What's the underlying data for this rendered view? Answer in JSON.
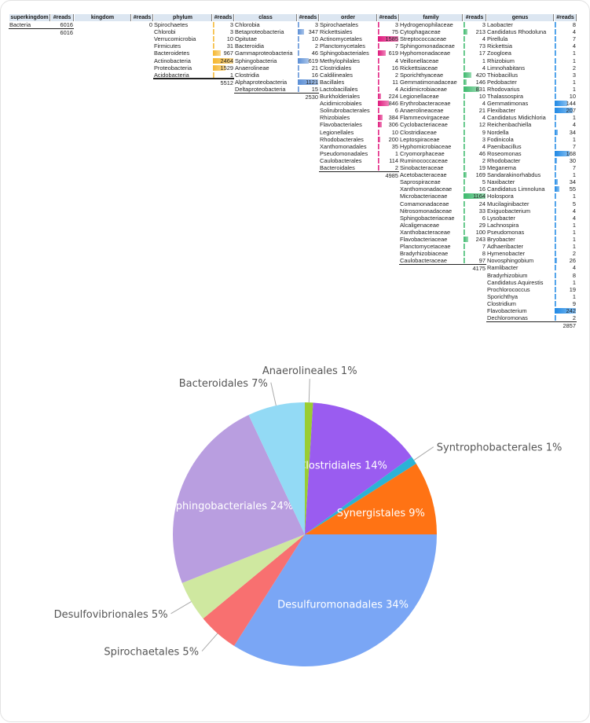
{
  "table": {
    "reads_header": "#reads",
    "levels": [
      {
        "header": "superkingdom",
        "items": [
          {
            "name": "Bacteria",
            "reads": 6016
          }
        ],
        "total": 6016,
        "bar_color": null
      },
      {
        "header": "kingdom",
        "items": [
          {
            "name": "",
            "reads": 0
          }
        ],
        "total": null,
        "bar_color": null
      },
      {
        "header": "phylum",
        "bar_color": "#f5b730",
        "items": [
          {
            "name": "Spirochaetes",
            "reads": 3
          },
          {
            "name": "Chlorobi",
            "reads": 3
          },
          {
            "name": "Verrucomicrobia",
            "reads": 10
          },
          {
            "name": "Firmicutes",
            "reads": 31
          },
          {
            "name": "Bacteroidetes",
            "reads": 967
          },
          {
            "name": "Actinobacteria",
            "reads": 2464
          },
          {
            "name": "Proteobacteria",
            "reads": 1529
          },
          {
            "name": "Acidobacteria",
            "reads": 1
          }
        ],
        "total": 5512
      },
      {
        "header": "class",
        "bar_color": "#5b8fd6",
        "items": [
          {
            "name": "Chlorobia",
            "reads": 3
          },
          {
            "name": "Betaproteobacteria",
            "reads": 347
          },
          {
            "name": "Opitutae",
            "reads": 10
          },
          {
            "name": "Bacteroidia",
            "reads": 2
          },
          {
            "name": "Gammaproteobacteria",
            "reads": 46
          },
          {
            "name": "Sphingobacteria",
            "reads": 619
          },
          {
            "name": "Anaerolineae",
            "reads": 21
          },
          {
            "name": "Clostridia",
            "reads": 16
          },
          {
            "name": "Alphaproteobacteria",
            "reads": 1121
          },
          {
            "name": "Deltaproteobacteria",
            "reads": 15
          }
        ],
        "total": 2530
      },
      {
        "header": "order",
        "bar_color": "#e0197d",
        "items": [
          {
            "name": "Spirochaetales",
            "reads": 3
          },
          {
            "name": "Rickettsiales",
            "reads": 75
          },
          {
            "name": "Actinomycetales",
            "reads": 1585
          },
          {
            "name": "Planctomycetales",
            "reads": 7
          },
          {
            "name": "Sphingobacteriales",
            "reads": 619
          },
          {
            "name": "Methylophilales",
            "reads": 4
          },
          {
            "name": "Clostridiales",
            "reads": 16
          },
          {
            "name": "Caldilineales",
            "reads": 2
          },
          {
            "name": "Bacillales",
            "reads": 11
          },
          {
            "name": "Lactobacillales",
            "reads": 4
          },
          {
            "name": "Burkholderiales",
            "reads": 224
          },
          {
            "name": "Acidimicrobiales",
            "reads": 846
          },
          {
            "name": "Solirubrobacterales",
            "reads": 6
          },
          {
            "name": "Rhizobiales",
            "reads": 384
          },
          {
            "name": "Flavobacteriales",
            "reads": 306
          },
          {
            "name": "Legionellales",
            "reads": 10
          },
          {
            "name": "Rhodobacterales",
            "reads": 200
          },
          {
            "name": "Xanthomonadales",
            "reads": 35
          },
          {
            "name": "Pseudomonadales",
            "reads": 1
          },
          {
            "name": "Caulobacterales",
            "reads": 114
          },
          {
            "name": "Bacteroidales",
            "reads": 2
          }
        ],
        "total": 4985
      },
      {
        "header": "family",
        "bar_color": "#3cb96c",
        "items": [
          {
            "name": "Hydrogenophilaceae",
            "reads": 3
          },
          {
            "name": "Cytophagaceae",
            "reads": 213
          },
          {
            "name": "Streptococcaceae",
            "reads": 4
          },
          {
            "name": "Sphingomonadaceae",
            "reads": 73
          },
          {
            "name": "Hyphomonadaceae",
            "reads": 17
          },
          {
            "name": "Veillonellaceae",
            "reads": 1
          },
          {
            "name": "Rickettsiaceae",
            "reads": 4
          },
          {
            "name": "Sporichthyaceae",
            "reads": 420
          },
          {
            "name": "Gemmatimonadaceae",
            "reads": 146
          },
          {
            "name": "Acidimicrobiaceae",
            "reads": 831
          },
          {
            "name": "Legionellaceae",
            "reads": 10
          },
          {
            "name": "Erythrobacteraceae",
            "reads": 4
          },
          {
            "name": "Anaerolineaceae",
            "reads": 21
          },
          {
            "name": "Flammeovirgaceae",
            "reads": 4
          },
          {
            "name": "Cyclobacteriaceae",
            "reads": 12
          },
          {
            "name": "Clostridiaceae",
            "reads": 9
          },
          {
            "name": "Leptospiraceae",
            "reads": 3
          },
          {
            "name": "Hyphomicrobiaceae",
            "reads": 4
          },
          {
            "name": "Cryomorphaceae",
            "reads": 46
          },
          {
            "name": "Ruminococcaceae",
            "reads": 2
          },
          {
            "name": "Sinobacteraceae",
            "reads": 19
          },
          {
            "name": "Acetobacteraceae",
            "reads": 169
          },
          {
            "name": "Saprospiraceae",
            "reads": 5
          },
          {
            "name": "Xanthomonadaceae",
            "reads": 16
          },
          {
            "name": "Microbacteriaceae",
            "reads": 1164
          },
          {
            "name": "Comamonadaceae",
            "reads": 24
          },
          {
            "name": "Nitrosomonadaceae",
            "reads": 33
          },
          {
            "name": "Sphingobacteriaceae",
            "reads": 6
          },
          {
            "name": "Alcaligenaceae",
            "reads": 29
          },
          {
            "name": "Xanthobacteraceae",
            "reads": 100
          },
          {
            "name": "Flavobacteriaceae",
            "reads": 243
          },
          {
            "name": "Planctomycetaceae",
            "reads": 7
          },
          {
            "name": "Bradyrhizobiaceae",
            "reads": 8
          },
          {
            "name": "Caulobacteraceae",
            "reads": 97
          }
        ],
        "total": 4175
      },
      {
        "header": "genus",
        "bar_color": "#1e88e5",
        "items": [
          {
            "name": "Laobacter",
            "reads": 8
          },
          {
            "name": "Candidatus Rhodoluna",
            "reads": 4
          },
          {
            "name": "Pirellula",
            "reads": 7
          },
          {
            "name": "Rickettsia",
            "reads": 4
          },
          {
            "name": "Zoogloea",
            "reads": 1
          },
          {
            "name": "Rhizobium",
            "reads": 1
          },
          {
            "name": "Limnohabitans",
            "reads": 2
          },
          {
            "name": "Thiobacillus",
            "reads": 3
          },
          {
            "name": "Pedobacter",
            "reads": 1
          },
          {
            "name": "Rhodovarius",
            "reads": 1
          },
          {
            "name": "Thalassospira",
            "reads": 10
          },
          {
            "name": "Gemmatimonas",
            "reads": 144
          },
          {
            "name": "Flexibacter",
            "reads": 207
          },
          {
            "name": "Candidatus Midichloria",
            "reads": 1
          },
          {
            "name": "Reichenbachiella",
            "reads": 4
          },
          {
            "name": "Nordella",
            "reads": 34
          },
          {
            "name": "Fodinicola",
            "reads": 1
          },
          {
            "name": "Paenibacillus",
            "reads": 7
          },
          {
            "name": "Roseomonas",
            "reads": 168
          },
          {
            "name": "Rhodobacter",
            "reads": 30
          },
          {
            "name": "Meganema",
            "reads": 7
          },
          {
            "name": "Sandarakinorhabdus",
            "reads": 1
          },
          {
            "name": "Naxibacter",
            "reads": 34
          },
          {
            "name": "Candidatus Limnoluna",
            "reads": 55
          },
          {
            "name": "Holospora",
            "reads": 1
          },
          {
            "name": "Mucilaginibacter",
            "reads": 5
          },
          {
            "name": "Exiguobacterium",
            "reads": 4
          },
          {
            "name": "Lysobacter",
            "reads": 4
          },
          {
            "name": "Lachnospira",
            "reads": 1
          },
          {
            "name": "Pseudomonas",
            "reads": 1
          },
          {
            "name": "Bryobacter",
            "reads": 1
          },
          {
            "name": "Adhaeribacter",
            "reads": 1
          },
          {
            "name": "Hymenobacter",
            "reads": 2
          },
          {
            "name": "Novosphingobium",
            "reads": 26
          },
          {
            "name": "Ramlibacter",
            "reads": 4
          },
          {
            "name": "Bradyrhizobium",
            "reads": 8
          },
          {
            "name": "Candidatus Aquirestis",
            "reads": 1
          },
          {
            "name": "Prochlorococcus",
            "reads": 19
          },
          {
            "name": "Sporichthya",
            "reads": 1
          },
          {
            "name": "Clostridium",
            "reads": 9
          },
          {
            "name": "Flavobacterium",
            "reads": 242
          },
          {
            "name": "Dechloromonas",
            "reads": 2
          }
        ],
        "total": 2857
      }
    ]
  },
  "chart_data": {
    "type": "pie",
    "start": "top",
    "direction": "clockwise",
    "slices": [
      {
        "label": "Anaerolineales",
        "value": 1,
        "color": "#9acd32",
        "label_position": "outside"
      },
      {
        "label": "Clostridiales",
        "value": 14,
        "color": "#9a5cf0",
        "label_position": "inside"
      },
      {
        "label": "Syntrophobacterales",
        "value": 1,
        "color": "#2bb3d6",
        "label_position": "outside"
      },
      {
        "label": "Synergistales",
        "value": 9,
        "color": "#ff7314",
        "label_position": "inside"
      },
      {
        "label": "Desulfuromonadales",
        "value": 34,
        "color": "#7aa6f5",
        "label_position": "inside"
      },
      {
        "label": "Spirochaetales",
        "value": 5,
        "color": "#f87070",
        "label_position": "outside"
      },
      {
        "label": "Desulfovibrionales",
        "value": 5,
        "color": "#cfe8a0",
        "label_position": "outside"
      },
      {
        "label": "Sphingobacteriales",
        "value": 24,
        "color": "#b99ee0",
        "label_position": "inside"
      },
      {
        "label": "Bacteroidales",
        "value": 7,
        "color": "#93daf5",
        "label_position": "outside"
      }
    ]
  }
}
